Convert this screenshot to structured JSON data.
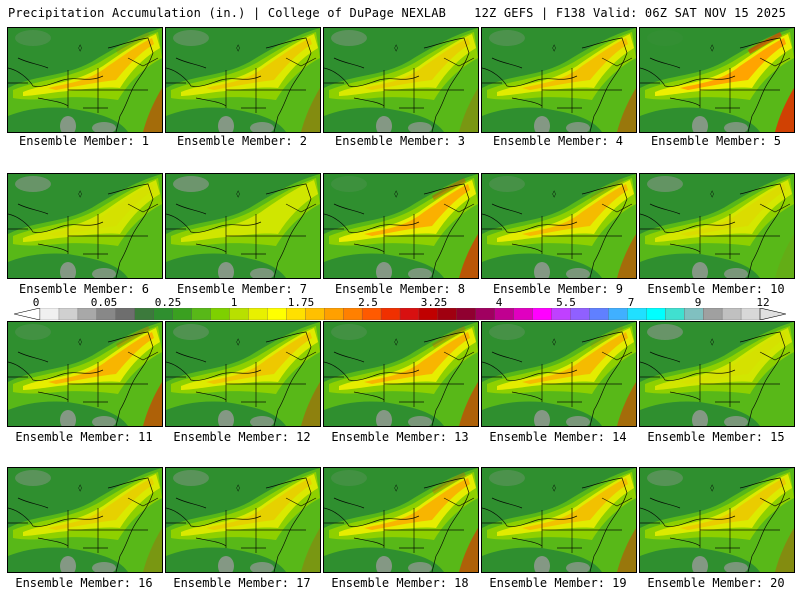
{
  "header": {
    "left": "Precipitation Accumulation (in.) | College of DuPage NEXLAB",
    "right": "12Z GEFS | F138 Valid: 06Z SAT NOV 15 2025"
  },
  "panels": [
    {
      "label": "Ensemble Member: 1",
      "intensity": 0.75
    },
    {
      "label": "Ensemble Member: 2",
      "intensity": 0.6
    },
    {
      "label": "Ensemble Member: 3",
      "intensity": 0.55
    },
    {
      "label": "Ensemble Member: 4",
      "intensity": 0.7
    },
    {
      "label": "Ensemble Member: 5",
      "intensity": 0.95
    },
    {
      "label": "Ensemble Member: 6",
      "intensity": 0.4
    },
    {
      "label": "Ensemble Member: 7",
      "intensity": 0.35
    },
    {
      "label": "Ensemble Member: 8",
      "intensity": 0.85
    },
    {
      "label": "Ensemble Member: 9",
      "intensity": 0.75
    },
    {
      "label": "Ensemble Member: 10",
      "intensity": 0.45
    },
    {
      "label": "Ensemble Member: 11",
      "intensity": 0.8
    },
    {
      "label": "Ensemble Member: 12",
      "intensity": 0.65
    },
    {
      "label": "Ensemble Member: 13",
      "intensity": 0.8
    },
    {
      "label": "Ensemble Member: 14",
      "intensity": 0.75
    },
    {
      "label": "Ensemble Member: 15",
      "intensity": 0.4
    },
    {
      "label": "Ensemble Member: 16",
      "intensity": 0.55
    },
    {
      "label": "Ensemble Member: 17",
      "intensity": 0.55
    },
    {
      "label": "Ensemble Member: 18",
      "intensity": 0.8
    },
    {
      "label": "Ensemble Member: 19",
      "intensity": 0.7
    },
    {
      "label": "Ensemble Member: 20",
      "intensity": 0.6
    }
  ],
  "colorbar": {
    "tick_labels": [
      "0",
      "0.05",
      "0.25",
      "1",
      "1.75",
      "2.5",
      "3.25",
      "4",
      "5.5",
      "7",
      "9",
      "12"
    ],
    "tick_values": [
      0,
      0.05,
      0.25,
      1,
      1.75,
      2.5,
      3.25,
      4,
      5.5,
      7,
      9,
      12
    ],
    "colors": [
      "#f0f0f0",
      "#d0d0d0",
      "#a8a8a8",
      "#888888",
      "#6e6e6e",
      "#3c7a3c",
      "#2f8f2f",
      "#3aa020",
      "#58b818",
      "#7ed000",
      "#b8e000",
      "#e8f000",
      "#ffff00",
      "#ffe000",
      "#ffc000",
      "#ffa000",
      "#ff8000",
      "#ff5a00",
      "#f03000",
      "#d81010",
      "#c00000",
      "#a00010",
      "#900030",
      "#a00060",
      "#c00090",
      "#e000c0",
      "#ff00ff",
      "#c040ff",
      "#9060ff",
      "#6080ff",
      "#40b0ff",
      "#20e0ff",
      "#00ffff",
      "#40e0d0",
      "#80c0c0",
      "#a0a0a0",
      "#c0c0c0",
      "#d8d8d8"
    ]
  },
  "colors": {
    "base_green": "#2f8f2f",
    "mid_green": "#58b818",
    "light_green": "#8ed000",
    "yellow": "#f0f000",
    "orange": "#ffa000",
    "red": "#e03000",
    "gray": "#9a9a9a"
  }
}
